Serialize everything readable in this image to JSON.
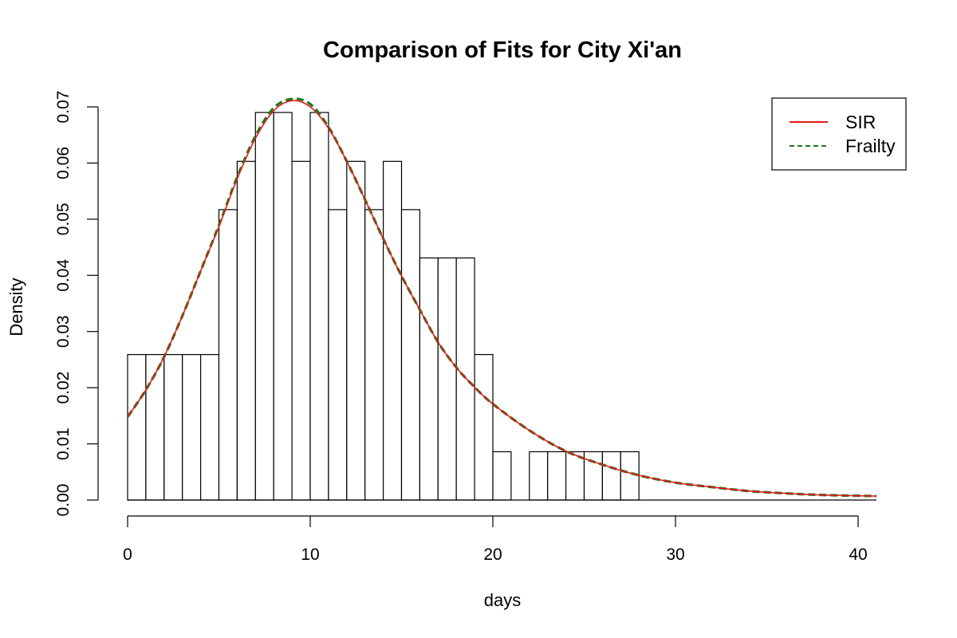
{
  "chart_data": {
    "type": "histogram",
    "title": "Comparison of Fits for City Xi'an",
    "xlabel": "days",
    "ylabel": "Density",
    "xlim": [
      0,
      41
    ],
    "ylim": [
      0,
      0.07
    ],
    "x_ticks": [
      0,
      10,
      20,
      30,
      40
    ],
    "x_tick_labels": [
      "0",
      "10",
      "20",
      "30",
      "40"
    ],
    "y_ticks": [
      0,
      0.01,
      0.02,
      0.03,
      0.04,
      0.05,
      0.06,
      0.07
    ],
    "y_tick_labels": [
      "0.00",
      "0.01",
      "0.02",
      "0.03",
      "0.04",
      "0.05",
      "0.06",
      "0.07"
    ],
    "grid": false,
    "legend_position": "top-right",
    "bins": {
      "start": 0,
      "width": 1,
      "values": [
        0.0259,
        0.0259,
        0.0259,
        0.0259,
        0.0259,
        0.0517,
        0.0603,
        0.069,
        0.069,
        0.0603,
        0.069,
        0.0517,
        0.0603,
        0.0517,
        0.0603,
        0.0517,
        0.0431,
        0.0431,
        0.0431,
        0.0259,
        0.0086,
        0,
        0.0086,
        0.0086,
        0.0086,
        0.0086,
        0.0086,
        0.0086
      ]
    },
    "series": [
      {
        "name": "SIR",
        "color": "#e31a1c",
        "style": "solid",
        "x": [
          0,
          1,
          2,
          3,
          4,
          5,
          6,
          7,
          8,
          9,
          10,
          11,
          12,
          13,
          14,
          15,
          16,
          17,
          18,
          19,
          20,
          22,
          24,
          26,
          28,
          30,
          32,
          34,
          36,
          38,
          41
        ],
        "y": [
          0.0148,
          0.0196,
          0.0255,
          0.0328,
          0.0408,
          0.0487,
          0.0572,
          0.0644,
          0.0693,
          0.0711,
          0.07,
          0.0662,
          0.0603,
          0.0535,
          0.0465,
          0.0399,
          0.0339,
          0.0281,
          0.0236,
          0.0201,
          0.0171,
          0.0124,
          0.0087,
          0.0063,
          0.0044,
          0.0031,
          0.0023,
          0.0016,
          0.0012,
          0.0009,
          0.0007
        ]
      },
      {
        "name": "Frailty",
        "color": "#1a7a1a",
        "style": "dashed",
        "x": [
          0,
          1,
          2,
          3,
          4,
          5,
          6,
          7,
          8,
          9,
          10,
          11,
          12,
          13,
          14,
          15,
          16,
          17,
          18,
          19,
          20,
          22,
          24,
          26,
          28,
          30,
          32,
          34,
          36,
          38,
          41
        ],
        "y": [
          0.0148,
          0.0196,
          0.0255,
          0.0328,
          0.0408,
          0.0489,
          0.0575,
          0.0648,
          0.0698,
          0.0714,
          0.0705,
          0.0664,
          0.0603,
          0.0535,
          0.0465,
          0.0399,
          0.0339,
          0.0281,
          0.0236,
          0.0201,
          0.0171,
          0.0124,
          0.0087,
          0.0063,
          0.0044,
          0.0031,
          0.0023,
          0.0016,
          0.0012,
          0.0009,
          0.0007
        ]
      }
    ]
  }
}
